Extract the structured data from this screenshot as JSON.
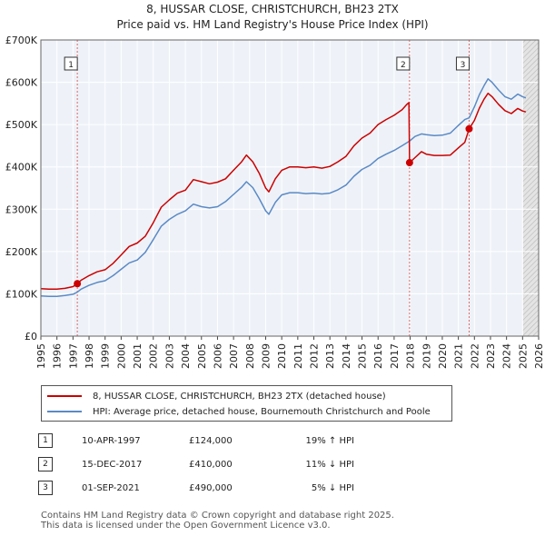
{
  "chart_data": {
    "type": "line",
    "title": "8, HUSSAR CLOSE, CHRISTCHURCH, BH23 2TX",
    "subtitle": "Price paid vs. HM Land Registry's House Price Index (HPI)",
    "xlim": [
      1995,
      2026
    ],
    "ylim": [
      0,
      700000
    ],
    "y_ticks": [
      0,
      100000,
      200000,
      300000,
      400000,
      500000,
      600000,
      700000
    ],
    "y_tick_labels": [
      "£0",
      "£100K",
      "£200K",
      "£300K",
      "£400K",
      "£500K",
      "£600K",
      "£700K"
    ],
    "x_ticks": [
      "1995",
      "1996",
      "1997",
      "1998",
      "1999",
      "2000",
      "2001",
      "2002",
      "2003",
      "2004",
      "2005",
      "2006",
      "2007",
      "2008",
      "2009",
      "2010",
      "2011",
      "2012",
      "2013",
      "2014",
      "2015",
      "2016",
      "2017",
      "2018",
      "2019",
      "2020",
      "2021",
      "2022",
      "2023",
      "2024",
      "2025",
      "2026"
    ],
    "grid": true,
    "future_shade_from": 2025.0,
    "series": [
      {
        "name": "8, HUSSAR CLOSE, CHRISTCHURCH, BH23 2TX (detached house)",
        "color": "#cc0000",
        "points": [
          [
            1995.0,
            112000
          ],
          [
            1995.5,
            111000
          ],
          [
            1996.0,
            111000
          ],
          [
            1996.5,
            113000
          ],
          [
            1997.0,
            117000
          ],
          [
            1997.27,
            124000
          ],
          [
            1997.5,
            132000
          ],
          [
            1998.0,
            143000
          ],
          [
            1998.5,
            152000
          ],
          [
            1999.0,
            157000
          ],
          [
            1999.5,
            172000
          ],
          [
            2000.0,
            192000
          ],
          [
            2000.5,
            212000
          ],
          [
            2001.0,
            220000
          ],
          [
            2001.5,
            236000
          ],
          [
            2002.0,
            268000
          ],
          [
            2002.5,
            305000
          ],
          [
            2003.0,
            322000
          ],
          [
            2003.5,
            338000
          ],
          [
            2004.0,
            345000
          ],
          [
            2004.5,
            370000
          ],
          [
            2005.0,
            365000
          ],
          [
            2005.5,
            360000
          ],
          [
            2006.0,
            364000
          ],
          [
            2006.5,
            372000
          ],
          [
            2007.0,
            392000
          ],
          [
            2007.5,
            412000
          ],
          [
            2007.8,
            428000
          ],
          [
            2008.2,
            412000
          ],
          [
            2008.6,
            385000
          ],
          [
            2009.0,
            350000
          ],
          [
            2009.2,
            341000
          ],
          [
            2009.6,
            372000
          ],
          [
            2010.0,
            392000
          ],
          [
            2010.5,
            400000
          ],
          [
            2011.0,
            400000
          ],
          [
            2011.5,
            398000
          ],
          [
            2012.0,
            400000
          ],
          [
            2012.5,
            397000
          ],
          [
            2013.0,
            401000
          ],
          [
            2013.5,
            412000
          ],
          [
            2014.0,
            425000
          ],
          [
            2014.5,
            450000
          ],
          [
            2015.0,
            468000
          ],
          [
            2015.5,
            480000
          ],
          [
            2016.0,
            500000
          ],
          [
            2016.5,
            512000
          ],
          [
            2017.0,
            522000
          ],
          [
            2017.5,
            535000
          ],
          [
            2017.8,
            548000
          ],
          [
            2017.92,
            552000
          ],
          [
            2017.96,
            410000
          ],
          [
            2018.3,
            422000
          ],
          [
            2018.7,
            436000
          ],
          [
            2019.0,
            430000
          ],
          [
            2019.5,
            427000
          ],
          [
            2020.0,
            427000
          ],
          [
            2020.5,
            428000
          ],
          [
            2021.0,
            445000
          ],
          [
            2021.4,
            458000
          ],
          [
            2021.67,
            490000
          ],
          [
            2022.0,
            510000
          ],
          [
            2022.3,
            538000
          ],
          [
            2022.6,
            560000
          ],
          [
            2022.85,
            574000
          ],
          [
            2023.1,
            566000
          ],
          [
            2023.5,
            548000
          ],
          [
            2023.9,
            533000
          ],
          [
            2024.3,
            526000
          ],
          [
            2024.7,
            538000
          ],
          [
            2025.0,
            532000
          ],
          [
            2025.2,
            530000
          ]
        ]
      },
      {
        "name": "HPI: Average price, detached house, Bournemouth Christchurch and Poole",
        "color": "#5b8ac6",
        "points": [
          [
            1995.0,
            95000
          ],
          [
            1995.5,
            94000
          ],
          [
            1996.0,
            94000
          ],
          [
            1996.5,
            96000
          ],
          [
            1997.0,
            99000
          ],
          [
            1997.27,
            104000
          ],
          [
            1997.5,
            111000
          ],
          [
            1998.0,
            120000
          ],
          [
            1998.5,
            127000
          ],
          [
            1999.0,
            131000
          ],
          [
            1999.5,
            143000
          ],
          [
            2000.0,
            158000
          ],
          [
            2000.5,
            173000
          ],
          [
            2001.0,
            180000
          ],
          [
            2001.5,
            198000
          ],
          [
            2002.0,
            228000
          ],
          [
            2002.5,
            260000
          ],
          [
            2003.0,
            276000
          ],
          [
            2003.5,
            288000
          ],
          [
            2004.0,
            296000
          ],
          [
            2004.5,
            312000
          ],
          [
            2005.0,
            306000
          ],
          [
            2005.5,
            303000
          ],
          [
            2006.0,
            306000
          ],
          [
            2006.5,
            318000
          ],
          [
            2007.0,
            335000
          ],
          [
            2007.5,
            352000
          ],
          [
            2007.8,
            365000
          ],
          [
            2008.2,
            351000
          ],
          [
            2008.6,
            325000
          ],
          [
            2009.0,
            296000
          ],
          [
            2009.2,
            288000
          ],
          [
            2009.6,
            316000
          ],
          [
            2010.0,
            334000
          ],
          [
            2010.5,
            339000
          ],
          [
            2011.0,
            339000
          ],
          [
            2011.5,
            337000
          ],
          [
            2012.0,
            338000
          ],
          [
            2012.5,
            336000
          ],
          [
            2013.0,
            338000
          ],
          [
            2013.5,
            346000
          ],
          [
            2014.0,
            357000
          ],
          [
            2014.5,
            378000
          ],
          [
            2015.0,
            394000
          ],
          [
            2015.5,
            404000
          ],
          [
            2016.0,
            420000
          ],
          [
            2016.5,
            430000
          ],
          [
            2017.0,
            439000
          ],
          [
            2017.5,
            450000
          ],
          [
            2017.96,
            461000
          ],
          [
            2018.3,
            472000
          ],
          [
            2018.7,
            478000
          ],
          [
            2019.0,
            476000
          ],
          [
            2019.5,
            474000
          ],
          [
            2020.0,
            475000
          ],
          [
            2020.5,
            480000
          ],
          [
            2021.0,
            498000
          ],
          [
            2021.4,
            512000
          ],
          [
            2021.67,
            516000
          ],
          [
            2022.0,
            542000
          ],
          [
            2022.3,
            570000
          ],
          [
            2022.6,
            592000
          ],
          [
            2022.85,
            608000
          ],
          [
            2023.1,
            600000
          ],
          [
            2023.5,
            582000
          ],
          [
            2023.9,
            566000
          ],
          [
            2024.3,
            560000
          ],
          [
            2024.7,
            572000
          ],
          [
            2025.0,
            566000
          ],
          [
            2025.2,
            563000
          ]
        ]
      }
    ],
    "sales": [
      {
        "num": "1",
        "x": 1997.27,
        "price": 124000
      },
      {
        "num": "2",
        "x": 2017.96,
        "price": 410000
      },
      {
        "num": "3",
        "x": 2021.67,
        "price": 490000
      }
    ]
  },
  "legend": {
    "property": "8, HUSSAR CLOSE, CHRISTCHURCH, BH23 2TX (detached house)",
    "hpi": "HPI: Average price, detached house, Bournemouth Christchurch and Poole"
  },
  "transactions": [
    {
      "num": "1",
      "date": "10-APR-1997",
      "price": "£124,000",
      "hpi": "19% ↑ HPI"
    },
    {
      "num": "2",
      "date": "15-DEC-2017",
      "price": "£410,000",
      "hpi": "11% ↓ HPI"
    },
    {
      "num": "3",
      "date": "01-SEP-2021",
      "price": "£490,000",
      "hpi": "5% ↓ HPI"
    }
  ],
  "footer": {
    "line1": "Contains HM Land Registry data © Crown copyright and database right 2025.",
    "line2": "This data is licensed under the Open Government Licence v3.0."
  }
}
